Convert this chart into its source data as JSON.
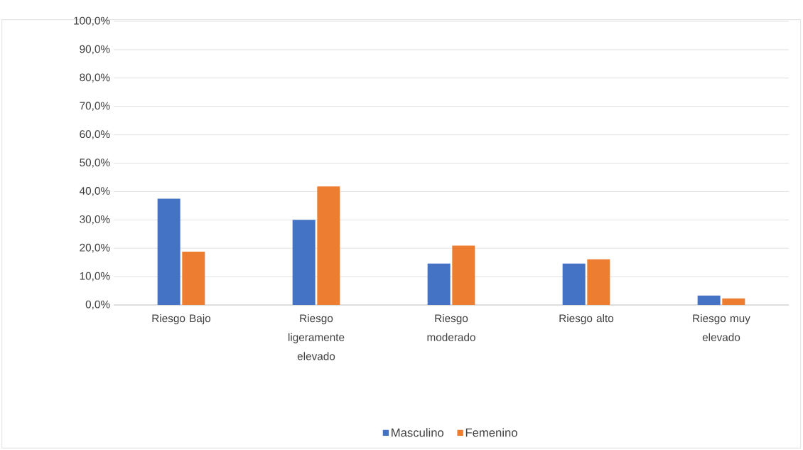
{
  "chart_data": {
    "type": "bar",
    "categories": [
      "Riesgo Bajo",
      "Riesgo ligeramente elevado",
      "Riesgo moderado",
      "Riesgo alto",
      "Riesgo muy elevado"
    ],
    "series": [
      {
        "name": "Masculino",
        "color": "#4472c4",
        "values": [
          37.5,
          30.0,
          14.6,
          14.6,
          3.3
        ]
      },
      {
        "name": "Femenino",
        "color": "#ed7d31",
        "values": [
          18.8,
          41.8,
          20.9,
          16.1,
          2.3
        ]
      }
    ],
    "ylim": [
      0,
      100
    ],
    "yticks": [
      {
        "value": 0,
        "label": "0,0%"
      },
      {
        "value": 10,
        "label": "10,0%"
      },
      {
        "value": 20,
        "label": "20,0%"
      },
      {
        "value": 30,
        "label": "30,0%"
      },
      {
        "value": 40,
        "label": "40,0%"
      },
      {
        "value": 50,
        "label": "50,0%"
      },
      {
        "value": 60,
        "label": "60,0%"
      },
      {
        "value": 70,
        "label": "70,0%"
      },
      {
        "value": 80,
        "label": "80,0%"
      },
      {
        "value": 90,
        "label": "90,0%"
      },
      {
        "value": 100,
        "label": "100,0%"
      }
    ],
    "grid": "y",
    "legend": "bottom"
  }
}
